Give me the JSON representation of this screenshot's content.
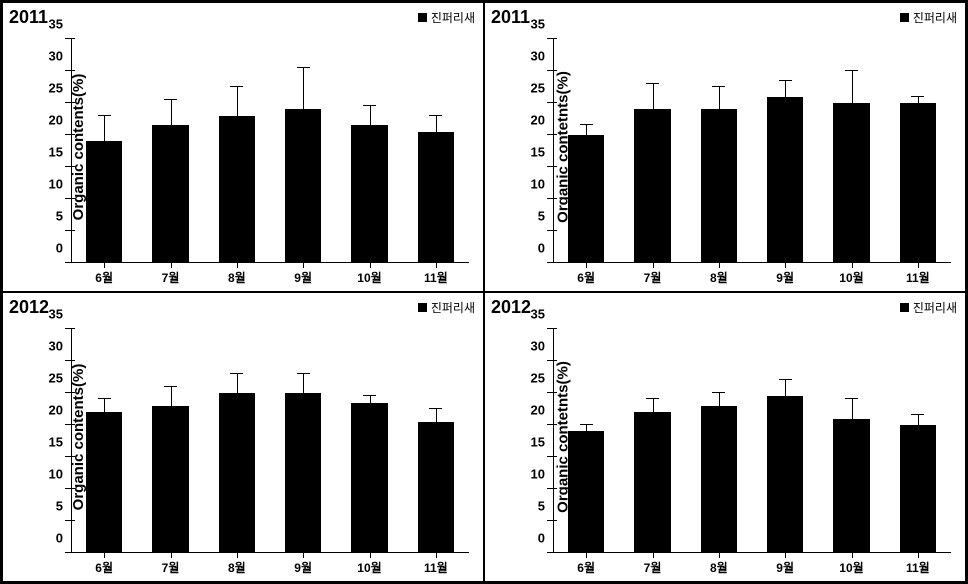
{
  "panels": [
    {
      "title": "2011",
      "legend": "진퍼리새",
      "ylabel": "Organic contents(%)",
      "ylim": [
        0,
        35
      ],
      "ytick_step": 5,
      "categories": [
        "6월",
        "7월",
        "8월",
        "9월",
        "10월",
        "11월"
      ],
      "values": [
        19,
        21.5,
        23,
        24,
        21.5,
        20.5
      ],
      "errors": [
        4,
        4,
        4.5,
        6.5,
        3,
        2.5
      ],
      "bar_color": "#000000",
      "bar_width": 0.55,
      "background": "#ffffff",
      "title_fontsize": 18,
      "label_fontsize": 15,
      "tick_fontsize": 13
    },
    {
      "title": "2011",
      "legend": "진퍼리새",
      "ylabel": "Organic contetnts(%)",
      "ylim": [
        0,
        35
      ],
      "ytick_step": 5,
      "categories": [
        "6월",
        "7월",
        "8월",
        "9월",
        "10월",
        "11월"
      ],
      "values": [
        20,
        24,
        24,
        26,
        25,
        25
      ],
      "errors": [
        1.5,
        4,
        3.5,
        2.5,
        5,
        1
      ],
      "bar_color": "#000000",
      "bar_width": 0.55,
      "background": "#ffffff",
      "title_fontsize": 18,
      "label_fontsize": 15,
      "tick_fontsize": 13
    },
    {
      "title": "2012",
      "legend": "진퍼리새",
      "ylabel": "Organic contents(%)",
      "ylim": [
        0,
        35
      ],
      "ytick_step": 5,
      "categories": [
        "6월",
        "7월",
        "8월",
        "9월",
        "10월",
        "11월"
      ],
      "values": [
        22,
        23,
        25,
        25,
        23.5,
        20.5
      ],
      "errors": [
        2,
        3,
        3,
        3,
        1,
        2
      ],
      "bar_color": "#000000",
      "bar_width": 0.55,
      "background": "#ffffff",
      "title_fontsize": 18,
      "label_fontsize": 15,
      "tick_fontsize": 13
    },
    {
      "title": "2012",
      "legend": "진퍼리새",
      "ylabel": "Organic contetnts(%)",
      "ylim": [
        0,
        35
      ],
      "ytick_step": 5,
      "categories": [
        "6월",
        "7월",
        "8월",
        "9월",
        "10월",
        "11월"
      ],
      "values": [
        19,
        22,
        23,
        24.5,
        21,
        20
      ],
      "errors": [
        1,
        2,
        2,
        2.5,
        3,
        1.5
      ],
      "bar_color": "#000000",
      "bar_width": 0.55,
      "background": "#ffffff",
      "title_fontsize": 18,
      "label_fontsize": 15,
      "tick_fontsize": 13
    }
  ]
}
